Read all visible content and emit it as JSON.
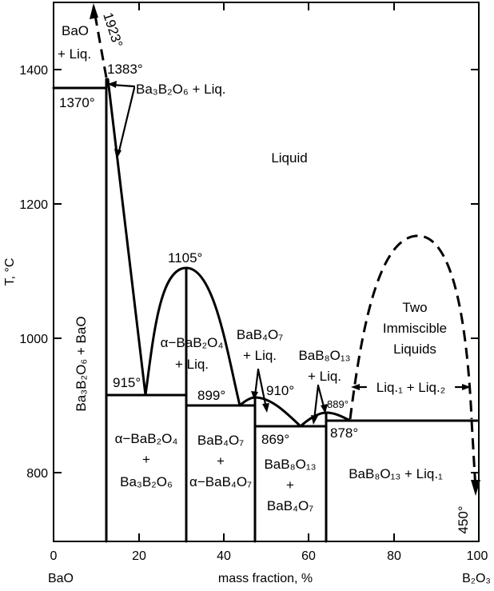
{
  "axes": {
    "ylabel": "T, °C",
    "xlabel": "mass fraction, %",
    "x_left_component": "BaO",
    "x_right_component": "B₂O₃",
    "x_ticks": [
      "0",
      "20",
      "40",
      "60",
      "80",
      "100"
    ],
    "y_ticks": [
      "800",
      "1000",
      "1200",
      "1400"
    ],
    "xlim": [
      0,
      100
    ],
    "ylim": [
      700,
      1500
    ]
  },
  "temperatures": {
    "t1923": "1923°",
    "t1383": "1383°",
    "t1370": "1370°",
    "t1105": "1105°",
    "t915": "915°",
    "t899": "899°",
    "t910": "910°",
    "t889": "889°",
    "t869": "869°",
    "t878": "878°",
    "t450": "450°"
  },
  "regions": {
    "bao_liq_1": "BaO",
    "bao_liq_2": "+ Liq.",
    "ba3b2o6_liq": "Ba₃B₂O₆ + Liq.",
    "liquid": "Liquid",
    "ba3b2o6_bao": "Ba₃B₂O₆ + BaO",
    "abab2o4_liq_1": "α−BaB₂O₄",
    "abab2o4_liq_2": "+ Liq.",
    "bab4o7_liq_1": "BaB₄O₇",
    "bab4o7_liq_2": "+ Liq.",
    "bab8o13_liq_1": "BaB₈O₁₃",
    "bab8o13_liq_2": "+ Liq.",
    "two_liquids_1": "Two",
    "two_liquids_2": "Immiscible",
    "two_liquids_3": "Liquids",
    "liq1_liq2": "Liq.₁ + Liq.₂",
    "abab2o4_ba3b2o6_1": "α−BaB₂O₄",
    "abab2o4_ba3b2o6_2": "+",
    "abab2o4_ba3b2o6_3": "Ba₃B₂O₆",
    "bab4o7_abab4o7_1": "BaB₄O₇",
    "bab4o7_abab4o7_2": "+",
    "bab4o7_abab4o7_3": "α−BaB₄O₇",
    "bab8o13_bab4o7_1": "BaB₈O₁₃",
    "bab8o13_bab4o7_2": "+",
    "bab8o13_bab4o7_3": "BaB₄O₇",
    "bab8o13_liq1": "BaB₈O₁₃ + Liq.₁"
  }
}
